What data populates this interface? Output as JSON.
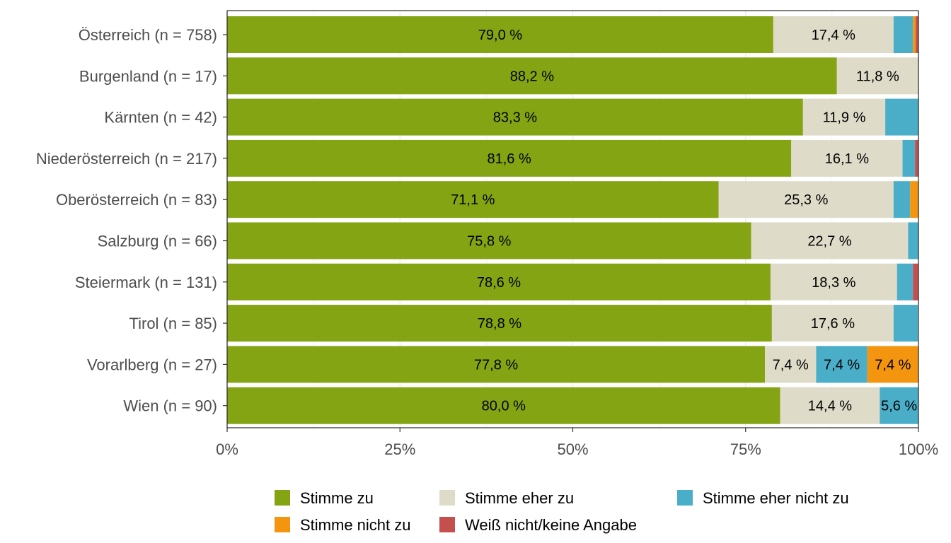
{
  "chart_data": {
    "type": "bar",
    "orientation": "horizontal",
    "stacked": true,
    "percent_stacked": true,
    "categories": [
      "Österreich (n = 758)",
      "Burgenland (n = 17)",
      "Kärnten (n = 42)",
      "Niederösterreich (n = 217)",
      "Oberösterreich (n = 83)",
      "Salzburg (n = 66)",
      "Steiermark (n = 131)",
      "Tirol (n = 85)",
      "Vorarlberg (n = 27)",
      "Wien (n = 90)"
    ],
    "series": [
      {
        "name": "Stimme zu",
        "color": "#84a413",
        "values": [
          79.0,
          88.2,
          83.3,
          81.6,
          71.1,
          75.8,
          78.6,
          78.8,
          77.8,
          80.0
        ],
        "labels": [
          "79,0 %",
          "88,2 %",
          "83,3 %",
          "81,6 %",
          "71,1 %",
          "75,8 %",
          "78,6 %",
          "78,8 %",
          "77,8 %",
          "80,0 %"
        ]
      },
      {
        "name": "Stimme eher zu",
        "color": "#dedbc8",
        "values": [
          17.4,
          11.8,
          11.9,
          16.1,
          25.3,
          22.7,
          18.3,
          17.6,
          7.4,
          14.4
        ],
        "labels": [
          "17,4 %",
          "11,8 %",
          "11,9 %",
          "16,1 %",
          "25,3 %",
          "22,7 %",
          "18,3 %",
          "17,6 %",
          "7,4 %",
          "14,4 %"
        ]
      },
      {
        "name": "Stimme eher nicht zu",
        "color": "#4aaec8",
        "values": [
          2.8,
          0,
          4.8,
          1.8,
          2.4,
          1.5,
          2.3,
          3.5,
          7.4,
          5.6
        ],
        "labels": [
          "",
          "",
          "",
          "",
          "",
          "",
          "",
          "",
          "7,4 %",
          "5,6 %"
        ]
      },
      {
        "name": "Stimme nicht zu",
        "color": "#f3950e",
        "values": [
          0.4,
          0,
          0,
          0,
          1.2,
          0,
          0,
          0,
          7.4,
          0
        ],
        "labels": [
          "",
          "",
          "",
          "",
          "",
          "",
          "",
          "",
          "7,4 %",
          ""
        ]
      },
      {
        "name": "Weiß nicht/keine Angabe",
        "color": "#c4504e",
        "values": [
          0.4,
          0,
          0,
          0.5,
          0,
          0,
          0.8,
          0,
          0,
          0
        ],
        "labels": [
          "",
          "",
          "",
          "",
          "",
          "",
          "",
          "",
          "",
          ""
        ]
      }
    ],
    "xlim": [
      0,
      100
    ],
    "x_ticks": [
      "0%",
      "25%",
      "50%",
      "75%",
      "100%"
    ],
    "xlabel": "",
    "ylabel": "",
    "grid": true,
    "legend_position": "bottom"
  }
}
